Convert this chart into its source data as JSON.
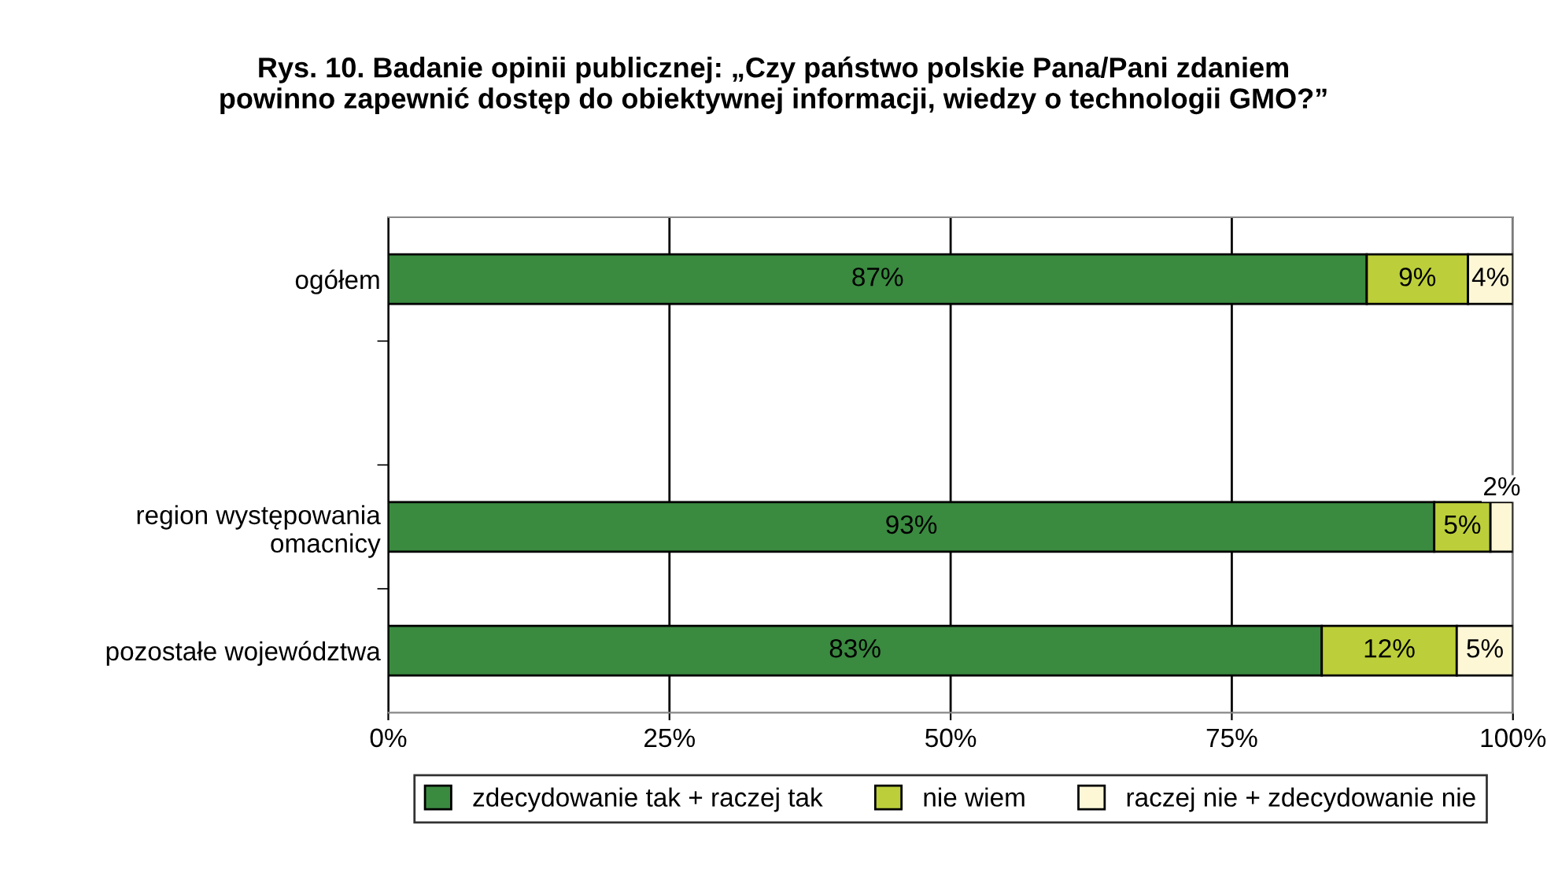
{
  "chart_data": {
    "type": "bar",
    "orientation": "horizontal",
    "stacked": true,
    "title": "Rys. 10. Badanie opinii publicznej: „Czy państwo polskie Pana/Pani zdaniem\npowinno zapewnić dostęp do obiektywnej informacji, wiedzy o technologii GMO?”",
    "categories": [
      "ogółem",
      null,
      "region występowania\nomacnicy",
      "pozostałe województwa"
    ],
    "series": [
      {
        "name": "zdecydowanie tak + raczej tak",
        "color": "#3a8a40",
        "values": [
          87,
          null,
          93,
          83
        ],
        "value_labels": [
          "87%",
          null,
          "93%",
          "83%"
        ]
      },
      {
        "name": "nie wiem",
        "color": "#bccf3a",
        "values": [
          9,
          null,
          5,
          12
        ],
        "value_labels": [
          "9%",
          null,
          "5%",
          "12%"
        ]
      },
      {
        "name": "raczej nie + zdecydowanie nie",
        "color": "#fdf7d6",
        "values": [
          4,
          null,
          2,
          5
        ],
        "value_labels": [
          "4%",
          null,
          "2%",
          "5%"
        ]
      }
    ],
    "xlim": [
      0,
      100
    ],
    "xticks": [
      {
        "value": 0,
        "label": "0%"
      },
      {
        "value": 25,
        "label": "25%"
      },
      {
        "value": 50,
        "label": "50%"
      },
      {
        "value": 75,
        "label": "75%"
      },
      {
        "value": 100,
        "label": "100%"
      }
    ],
    "grid": "x",
    "legend": "bottom"
  }
}
